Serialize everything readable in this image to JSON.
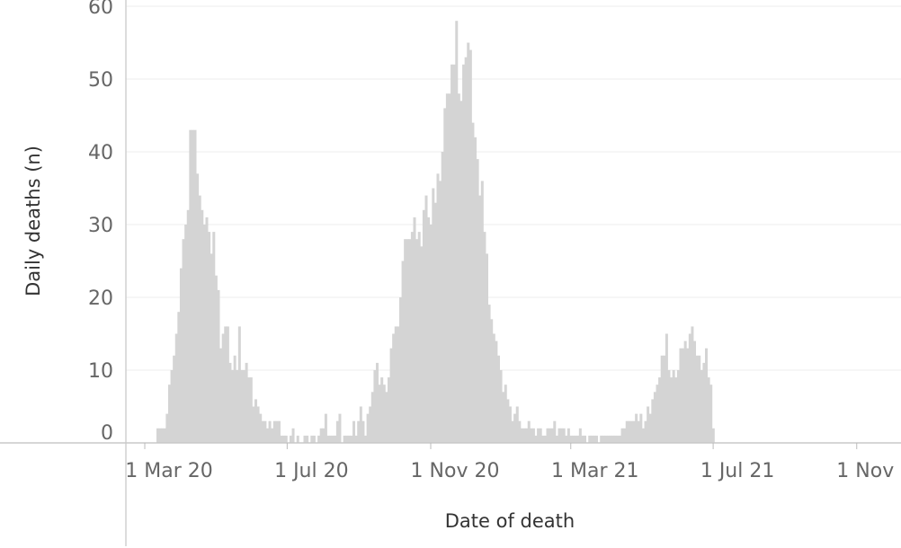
{
  "chart_data": {
    "type": "bar",
    "xlabel": "Date of death",
    "ylabel": "Daily deaths (n)",
    "ylim": [
      0,
      60
    ],
    "y_ticks": [
      0,
      10,
      20,
      30,
      40,
      50,
      60
    ],
    "x_ticks": [
      {
        "label": "1 Mar 20",
        "date": "2020-03-01"
      },
      {
        "label": "1 Jul 20",
        "date": "2020-07-01"
      },
      {
        "label": "1 Nov 20",
        "date": "2020-11-01"
      },
      {
        "label": "1 Mar 21",
        "date": "2021-03-01"
      },
      {
        "label": "1 Jul 21",
        "date": "2021-07-01"
      },
      {
        "label": "1 Nov 21",
        "date": "2021-11-01"
      }
    ],
    "grid": true,
    "bar_color": "#d4d4d4",
    "x_start": "2020-03-11",
    "x_step_days": 2,
    "values": [
      2,
      2,
      2,
      2,
      4,
      8,
      10,
      12,
      15,
      18,
      24,
      28,
      30,
      32,
      43,
      43,
      43,
      37,
      34,
      32,
      30,
      31,
      29,
      26,
      29,
      23,
      21,
      13,
      15,
      16,
      16,
      11,
      10,
      12,
      10,
      16,
      10,
      10,
      11,
      9,
      9,
      5,
      6,
      5,
      4,
      3,
      3,
      2,
      3,
      2,
      3,
      3,
      3,
      1,
      1,
      1,
      0,
      1,
      2,
      0,
      1,
      0,
      0,
      1,
      1,
      0,
      1,
      1,
      0,
      1,
      2,
      2,
      4,
      1,
      1,
      1,
      1,
      3,
      4,
      0,
      1,
      1,
      1,
      1,
      3,
      1,
      3,
      5,
      3,
      1,
      4,
      5,
      7,
      10,
      11,
      8,
      9,
      8,
      7,
      9,
      13,
      15,
      16,
      16,
      20,
      25,
      28,
      28,
      28,
      29,
      31,
      28,
      29,
      27,
      32,
      34,
      31,
      30,
      35,
      33,
      37,
      36,
      40,
      46,
      48,
      48,
      52,
      52,
      58,
      48,
      47,
      52,
      53,
      55,
      54,
      44,
      42,
      39,
      34,
      36,
      29,
      26,
      19,
      17,
      15,
      14,
      12,
      10,
      7,
      8,
      6,
      5,
      3,
      4,
      5,
      3,
      2,
      2,
      2,
      3,
      2,
      2,
      1,
      2,
      2,
      1,
      1,
      2,
      2,
      2,
      3,
      1,
      2,
      2,
      2,
      1,
      2,
      1,
      1,
      1,
      1,
      2,
      1,
      1,
      0,
      1,
      1,
      1,
      1,
      0,
      1,
      1,
      1,
      1,
      1,
      1,
      1,
      1,
      1,
      2,
      2,
      3,
      3,
      3,
      3,
      4,
      3,
      4,
      2,
      3,
      5,
      4,
      6,
      7,
      8,
      9,
      12,
      12,
      15,
      10,
      9,
      10,
      9,
      10,
      13,
      13,
      14,
      13,
      15,
      16,
      14,
      12,
      12,
      10,
      11,
      13,
      9,
      8,
      2
    ]
  }
}
